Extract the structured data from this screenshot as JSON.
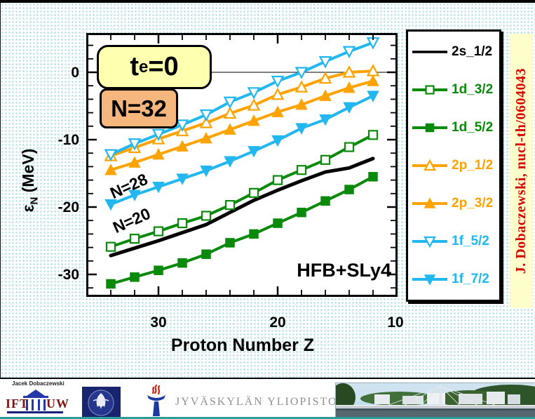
{
  "chart_data": {
    "type": "line",
    "xlabel": "Proton Number Z",
    "ylabel": {
      "symbol": "ε",
      "sub": "N",
      "unit": " (MeV)"
    },
    "x_axis_reversed": true,
    "xlim": [
      36.1,
      9.9
    ],
    "ylim": [
      -33.3,
      5.8
    ],
    "x_ticks_major": [
      30,
      20,
      10
    ],
    "x_tick_labels": [
      "30",
      "20",
      "10"
    ],
    "x_minor_step": 2,
    "y_ticks_major": [
      0,
      -10,
      -20,
      -30
    ],
    "y_tick_labels": [
      "0",
      "-10",
      "-20",
      "-30"
    ],
    "y_minor_step": 2,
    "zero_line": true,
    "x": [
      34,
      32,
      30,
      28,
      26,
      24,
      22,
      20,
      18,
      16,
      14,
      12
    ],
    "series": [
      {
        "name": "2s_1/2",
        "color": "#000000",
        "marker": "none",
        "values": [
          -27.2,
          -26.1,
          -25.0,
          -23.8,
          -22.6,
          -20.8,
          -19.0,
          -17.5,
          -16.1,
          -14.8,
          -14.2,
          -12.8
        ]
      },
      {
        "name": "1d_3/2",
        "color": "#0a8a0a",
        "marker": "square-open",
        "values": [
          -25.9,
          -24.7,
          -23.6,
          -22.4,
          -21.3,
          -19.7,
          -17.9,
          -16.0,
          -14.5,
          -13.0,
          -11.1,
          -9.3
        ]
      },
      {
        "name": "1d_5/2",
        "color": "#0a8a0a",
        "marker": "square-filled",
        "values": [
          -31.4,
          -30.4,
          -29.4,
          -28.3,
          -27.0,
          -25.3,
          -24.0,
          -22.4,
          -20.8,
          -19.1,
          -17.4,
          -15.5
        ]
      },
      {
        "name": "2p_1/2",
        "color": "#FFA300",
        "marker": "triangle-up-open",
        "values": [
          -12.4,
          -11.2,
          -9.9,
          -8.7,
          -7.5,
          -6.1,
          -4.9,
          -3.3,
          -2.2,
          -0.9,
          0.0,
          0.2
        ]
      },
      {
        "name": "2p_3/2",
        "color": "#FFA300",
        "marker": "triangle-up-filled",
        "values": [
          -14.5,
          -13.4,
          -12.2,
          -11.0,
          -9.8,
          -8.5,
          -7.2,
          -5.9,
          -4.8,
          -3.5,
          -2.3,
          -1.3
        ]
      },
      {
        "name": "1f_5/2",
        "color": "#22B7EE",
        "marker": "triangle-down-open",
        "values": [
          -12.2,
          -10.6,
          -9.2,
          -7.8,
          -6.3,
          -4.4,
          -3.0,
          -1.3,
          0.0,
          1.6,
          3.1,
          4.4
        ]
      },
      {
        "name": "1f_7/2",
        "color": "#22B7EE",
        "marker": "triangle-down-filled",
        "values": [
          -19.6,
          -18.2,
          -17.0,
          -15.8,
          -14.6,
          -13.2,
          -11.7,
          -10.1,
          -8.3,
          -7.0,
          -5.2,
          -3.5
        ]
      }
    ],
    "annotations": {
      "te": {
        "base": "t",
        "sub": "e",
        "rest": "=0"
      },
      "n32": "N=32",
      "n28": "N=28",
      "n20": "N=20",
      "model": "HFB+SLy4"
    },
    "legend_position": "right-outside"
  },
  "credit_vertical": "J. Dobaczewski, nucl-th/0604043",
  "footer": {
    "author": "Jacek Dobaczewski",
    "ift_label": "IFT",
    "uw_label": "UW",
    "university_name": "JYVÄSKYLÄN YLIOPISTO"
  },
  "colors": {
    "green": "#0a8a0a",
    "orange": "#FFA300",
    "cyan": "#22B7EE",
    "credit_red": "#D60000",
    "te_box_bg": "#FFFFB0",
    "n32_box_bg": "#F6B77F",
    "credit_strip_bg": "#FFFFCC",
    "footer_teal_line": "#2E9B9B"
  }
}
